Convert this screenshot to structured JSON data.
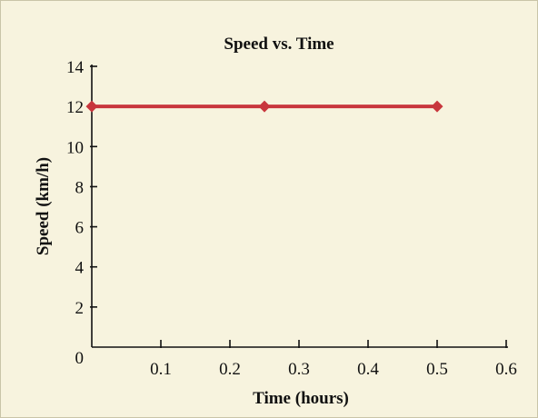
{
  "chart_data": {
    "type": "line",
    "title": "Speed vs. Time",
    "xlabel": "Time (hours)",
    "ylabel": "Speed (km/h)",
    "xlim": [
      0,
      0.6
    ],
    "ylim": [
      0,
      14
    ],
    "x_ticks": [
      0.1,
      0.2,
      0.3,
      0.4,
      0.5,
      0.6
    ],
    "x_tick_labels": [
      "0.1",
      "0.2",
      "0.3",
      "0.4",
      "0.5",
      "0.6"
    ],
    "y_ticks": [
      2,
      4,
      6,
      8,
      10,
      12,
      14
    ],
    "y_tick_labels": [
      "2",
      "4",
      "6",
      "8",
      "10",
      "12",
      "14"
    ],
    "origin_label": "0",
    "grid": false,
    "series": [
      {
        "x": [
          0,
          0.25,
          0.5
        ],
        "y": [
          12,
          12,
          12
        ],
        "color": "#c8363d",
        "marker": "diamond"
      }
    ]
  }
}
